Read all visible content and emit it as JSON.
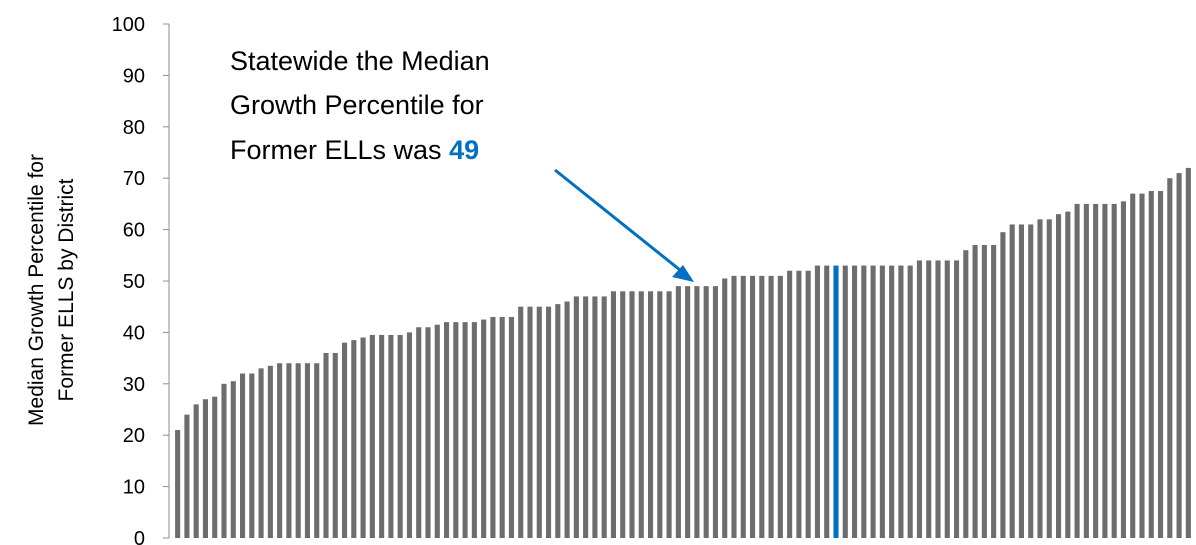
{
  "chart_data": {
    "type": "bar",
    "ylabel_line1": "Median Growth Percentile for",
    "ylabel_line2": "Former ELLS by District",
    "ylim": [
      0,
      100
    ],
    "yticks": [
      0,
      10,
      20,
      30,
      40,
      50,
      60,
      70,
      80,
      90,
      100
    ],
    "grid": false,
    "bar_color": "#6d6d6d",
    "highlight_color": "#0070c0",
    "highlight_index": 71,
    "annotation": {
      "line1": "Statewide the Median",
      "line2": "Growth Percentile for",
      "line3_prefix": "Former ELLs was ",
      "line3_value": "49"
    },
    "values": [
      21,
      24,
      26,
      27,
      27.5,
      30,
      30.5,
      32,
      32,
      33,
      33.5,
      34,
      34,
      34,
      34,
      34,
      36,
      36,
      38,
      38.5,
      39,
      39.5,
      39.5,
      39.5,
      39.5,
      40,
      41,
      41,
      41.5,
      42,
      42,
      42,
      42,
      42.5,
      43,
      43,
      43,
      45,
      45,
      45,
      45,
      45.5,
      46,
      47,
      47,
      47,
      47,
      48,
      48,
      48,
      48,
      48,
      48,
      48,
      49,
      49,
      49,
      49,
      49,
      50.5,
      51,
      51,
      51,
      51,
      51,
      51,
      52,
      52,
      52,
      53,
      53,
      53,
      53,
      53,
      53,
      53,
      53,
      53,
      53,
      53,
      54,
      54,
      54,
      54,
      54,
      56,
      57,
      57,
      57,
      59.5,
      61,
      61,
      61,
      62,
      62,
      63,
      63.5,
      65,
      65,
      65,
      65,
      65,
      65.5,
      67,
      67,
      67.5,
      67.5,
      70,
      71,
      72
    ]
  }
}
